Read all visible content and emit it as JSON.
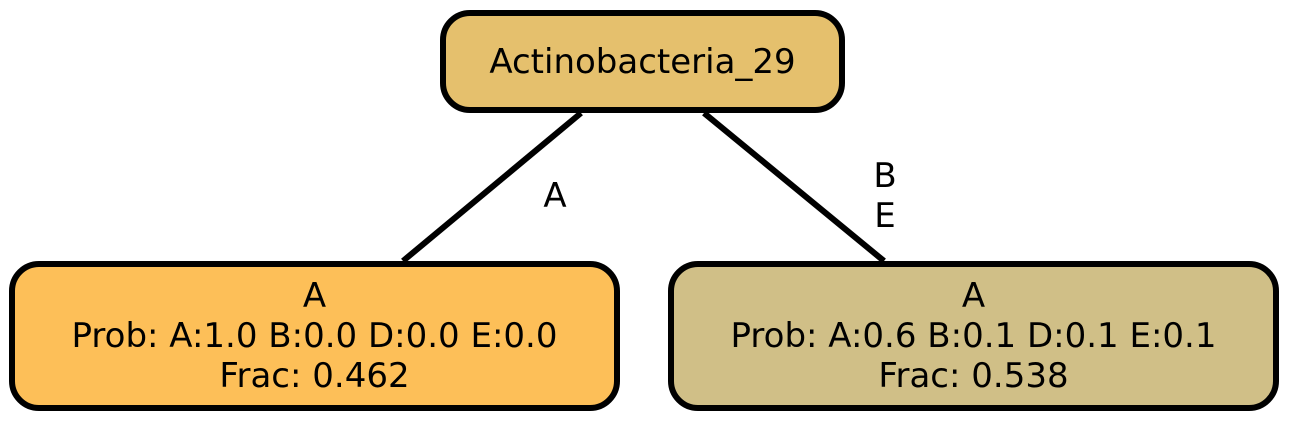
{
  "colors": {
    "root_fill": "#E5C06D",
    "left_fill": "#FDBF58",
    "right_fill": "#D0BF87",
    "stroke": "#000000"
  },
  "tree": {
    "root": {
      "label": "Actinobacteria_29"
    },
    "children": [
      {
        "edge_label": [
          "A"
        ],
        "class": "A",
        "prob": "Prob: A:1.0 B:0.0 D:0.0 E:0.0",
        "frac": "Frac: 0.462"
      },
      {
        "edge_label": [
          "B",
          "E"
        ],
        "class": "A",
        "prob": "Prob: A:0.6 B:0.1 D:0.1 E:0.1",
        "frac": "Frac: 0.538"
      }
    ]
  }
}
